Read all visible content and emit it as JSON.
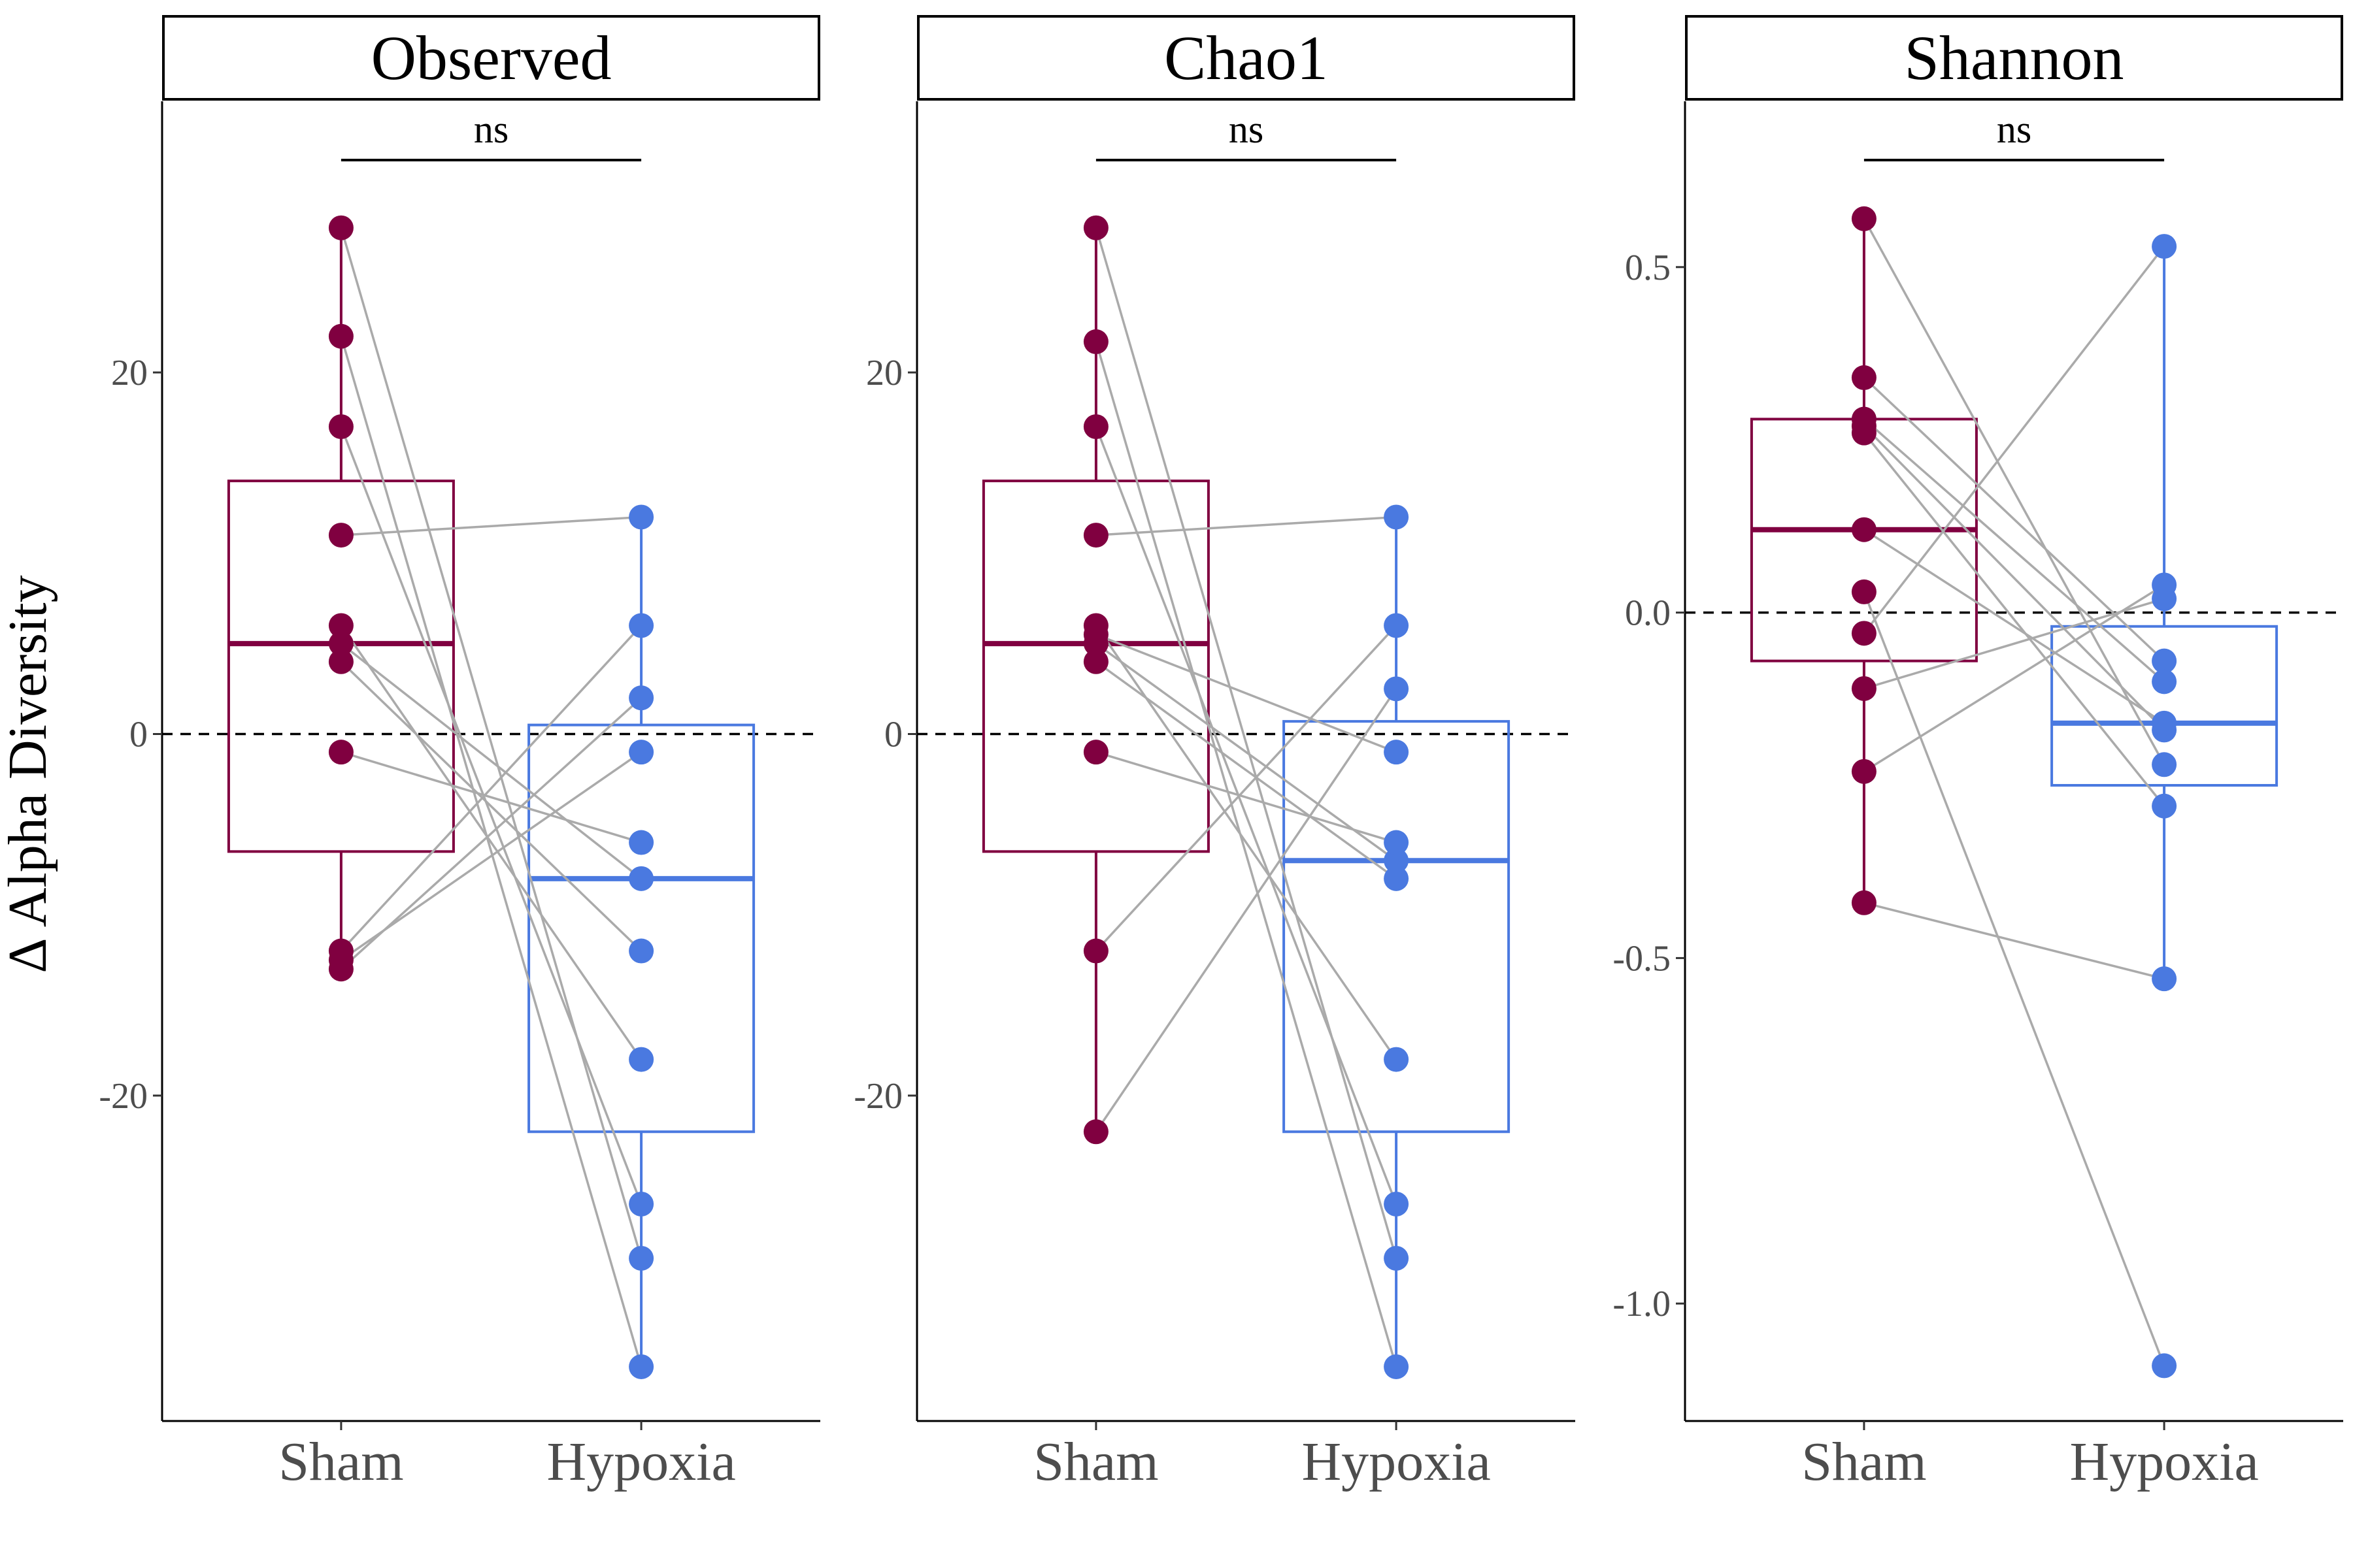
{
  "chart_data": {
    "type": "boxplot-paired",
    "ylabel": "Δ Alpha Diversity",
    "categories": [
      "Sham",
      "Hypoxia"
    ],
    "colors": {
      "Sham": "#800040",
      "Hypoxia": "#4a79e0",
      "pair_line": "#aaaaaa"
    },
    "reference_line": 0,
    "panels": [
      {
        "title": "Observed",
        "significance": "ns",
        "ylim": [
          -38,
          35
        ],
        "yticks": [
          -20,
          0,
          20
        ],
        "tick_labels": [
          "-20",
          "0",
          "20"
        ],
        "box": {
          "Sham": {
            "q1": -6.5,
            "median": 5,
            "q3": 14,
            "whisker_low": -13,
            "whisker_high": 28
          },
          "Hypoxia": {
            "q1": -22,
            "median": -8,
            "q3": 0.5,
            "whisker_low": -35,
            "whisker_high": 12
          }
        },
        "pairs": [
          [
            28,
            -29
          ],
          [
            22,
            -35
          ],
          [
            17,
            -26
          ],
          [
            11,
            12
          ],
          [
            6,
            -18
          ],
          [
            5,
            -8
          ],
          [
            4,
            -12
          ],
          [
            -1,
            -6
          ],
          [
            -12,
            6
          ],
          [
            -13,
            2
          ],
          [
            -12.5,
            -1
          ]
        ]
      },
      {
        "title": "Chao1",
        "significance": "ns",
        "ylim": [
          -38,
          35
        ],
        "yticks": [
          -20,
          0,
          20
        ],
        "tick_labels": [
          "-20",
          "0",
          "20"
        ],
        "box": {
          "Sham": {
            "q1": -6.5,
            "median": 5,
            "q3": 14,
            "whisker_low": -22,
            "whisker_high": 28
          },
          "Hypoxia": {
            "q1": -22,
            "median": -7,
            "q3": 0.7,
            "whisker_low": -35,
            "whisker_high": 12
          }
        },
        "pairs": [
          [
            28,
            -29
          ],
          [
            21.7,
            -35
          ],
          [
            17,
            -26
          ],
          [
            11,
            12
          ],
          [
            6,
            -18
          ],
          [
            5,
            -7
          ],
          [
            4,
            -8
          ],
          [
            -1,
            -6
          ],
          [
            -12,
            6
          ],
          [
            -22,
            2.5
          ],
          [
            5.5,
            -1
          ]
        ]
      },
      {
        "title": "Shannon",
        "significance": "ns",
        "ylim": [
          -1.17,
          0.74
        ],
        "yticks": [
          -1.0,
          -0.5,
          0.0,
          0.5
        ],
        "tick_labels": [
          "-1.0",
          "-0.5",
          "0.0",
          "0.5"
        ],
        "box": {
          "Sham": {
            "q1": -0.07,
            "median": 0.12,
            "q3": 0.28,
            "whisker_low": -0.42,
            "whisker_high": 0.57
          },
          "Hypoxia": {
            "q1": -0.25,
            "median": -0.16,
            "q3": -0.02,
            "whisker_low": -0.53,
            "whisker_high": 0.53
          }
        },
        "pairs": [
          [
            0.57,
            -0.22
          ],
          [
            0.34,
            -0.07
          ],
          [
            0.28,
            -0.1
          ],
          [
            0.27,
            -0.17
          ],
          [
            0.26,
            -0.28
          ],
          [
            0.12,
            -0.16
          ],
          [
            0.03,
            -1.09
          ],
          [
            -0.03,
            0.53
          ],
          [
            -0.11,
            0.02
          ],
          [
            -0.23,
            0.04
          ],
          [
            -0.42,
            -0.53
          ]
        ]
      }
    ]
  }
}
